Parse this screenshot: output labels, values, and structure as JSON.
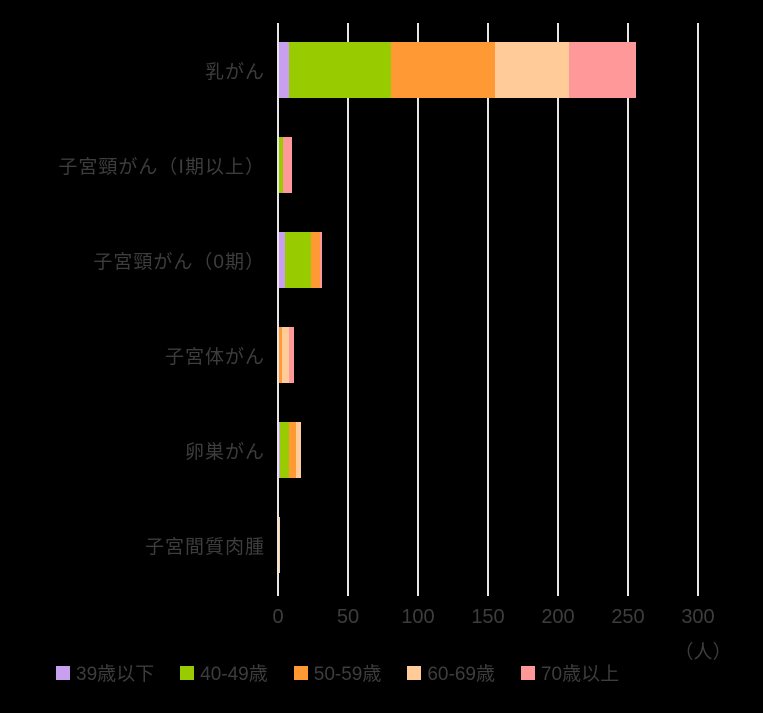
{
  "chart_data": {
    "type": "bar",
    "orientation": "horizontal",
    "stacked": true,
    "title": "",
    "categories": [
      "乳がん",
      "子宮頸がん（Ⅰ期以上）",
      "子宮頸がん（0期）",
      "子宮体がん",
      "卵巣がん",
      "子宮間質肉腫"
    ],
    "series": [
      {
        "name": "39歳以下",
        "color": "#c9a0f0",
        "values": [
          7,
          0,
          4,
          0,
          1,
          0
        ]
      },
      {
        "name": "40-49歳",
        "color": "#99cc00",
        "values": [
          73,
          3,
          19,
          0,
          6,
          0
        ]
      },
      {
        "name": "50-59歳",
        "color": "#ff9933",
        "values": [
          74,
          0,
          6,
          2,
          5,
          0
        ]
      },
      {
        "name": "60-69歳",
        "color": "#ffcc99",
        "values": [
          53,
          0,
          0,
          5,
          4,
          1
        ]
      },
      {
        "name": "70歳以上",
        "color": "#ff9999",
        "values": [
          48,
          6,
          2,
          4,
          0,
          0
        ]
      }
    ],
    "x_ticks": [
      "0",
      "50",
      "100",
      "150",
      "200",
      "250",
      "300"
    ],
    "x_tick_values": [
      0,
      50,
      100,
      150,
      200,
      250,
      300
    ],
    "x_unit": "（人）",
    "xlim": [
      0,
      300
    ],
    "grid": true,
    "legend_position": "bottom",
    "colors": {
      "background": "#000000",
      "text": "#3d3d3d",
      "gridline": "#e6e6e6"
    }
  }
}
